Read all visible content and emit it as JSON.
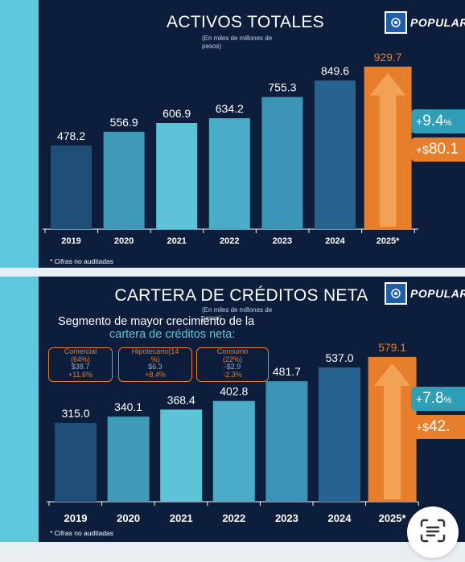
{
  "panels": [
    {
      "title": "ACTIVOS TOTALES",
      "subtitle_line1": "(En miles de millones de",
      "subtitle_line2": "pesos)",
      "logo_text": "POPULAR",
      "note": "* Cifras no auditadas",
      "badge_pct": {
        "prefix": "+",
        "value": "9.4",
        "suffix": "%"
      },
      "badge_abs": {
        "prefix": "+$",
        "value": "80.1"
      }
    },
    {
      "title": "CARTERA DE CRÉDITOS NETA",
      "subtitle_line1": "(En miles de millones de",
      "subtitle_line2": "pesos)",
      "logo_text": "POPULAR",
      "note": "* Cifras no auditadas",
      "badge_pct": {
        "prefix": "+",
        "value": "7.8",
        "suffix": "%"
      },
      "badge_abs": {
        "prefix": "+$",
        "value": "42."
      },
      "segment_title": "Segmento de mayor crecimiento de la",
      "segment_subtitle": "cartera de créditos neta:",
      "segments": [
        {
          "name": "Comercial",
          "share": "(64%)",
          "amount": "$38.7",
          "change": "+11.6%"
        },
        {
          "name": "Hipotecario(14",
          "share": "%)",
          "amount": "$6.3",
          "change": "+8.4%"
        },
        {
          "name": "Consumo",
          "share": "(22%)",
          "amount": "-$2.9",
          "change": "-2.3%"
        }
      ]
    }
  ],
  "colors": {
    "background": "#0d1e3d",
    "stripe": "#5ec7dc",
    "orange": "#e67e2b",
    "teal_badge": "#2f9fb8",
    "bar_colors": [
      "#1f4e79",
      "#3f9ab8",
      "#5cc4d6",
      "#4aacc6",
      "#3a94b6",
      "#27638f",
      "#e67e2b"
    ]
  },
  "chart_data": [
    {
      "type": "bar",
      "title": "ACTIVOS TOTALES",
      "subtitle": "(En miles de millones de pesos)",
      "categories": [
        "2019",
        "2020",
        "2021",
        "2022",
        "2023",
        "2024",
        "2025*"
      ],
      "values": [
        478.2,
        556.9,
        606.9,
        634.2,
        755.3,
        849.6,
        929.7
      ],
      "value_labels": [
        "478.2",
        "556.9",
        "606.9",
        "634.2",
        "755.3",
        "849.6",
        "929.7"
      ],
      "highlight": "2025*",
      "ylim": [
        0,
        1000
      ],
      "grid": false
    },
    {
      "type": "bar",
      "title": "CARTERA DE CRÉDITOS NETA",
      "subtitle": "(En miles de millones de pesos)",
      "categories": [
        "2019",
        "2020",
        "2021",
        "2022",
        "2023",
        "2024",
        "2025*"
      ],
      "values": [
        315.0,
        340.1,
        368.4,
        402.8,
        481.7,
        537.0,
        579.1
      ],
      "value_labels": [
        "315.0",
        "340.1",
        "368.4",
        "402.8",
        "481.7",
        "537.0",
        "579.1"
      ],
      "highlight": "2025*",
      "ylim": [
        0,
        620
      ],
      "grid": false
    }
  ]
}
